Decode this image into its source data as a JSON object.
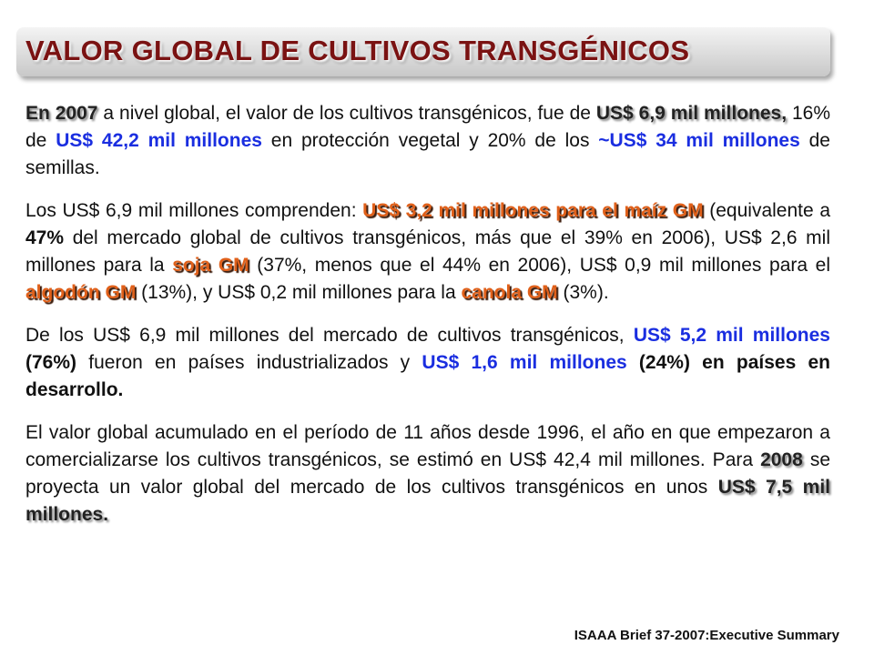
{
  "title": "VALOR GLOBAL DE CULTIVOS TRANSGÉNICOS",
  "paragraphs": [
    [
      "En 2007",
      " a nivel global, el valor de los cultivos transgénicos, fue de ",
      "US$ 6,9 mil millones,",
      " 16% de ",
      "US$ 42,2 mil millones",
      " en protección vegetal y 20% de los ",
      "~US$ 34 mil millones",
      " de semillas."
    ],
    [
      "Los US$ 6,9 mil millones comprenden: ",
      "US$ 3,2 mil millones para el maíz GM",
      " (equivalente a ",
      "47%",
      " del mercado global de cultivos transgénicos, más que el 39% en 2006), US$ 2,6 mil millones para la ",
      "soja GM",
      " (37%, menos que el 44% en 2006), US$ 0,9 mil millones para el ",
      "algodón GM",
      " (13%), y US$ 0,2 mil millones para la ",
      "canola GM",
      " (3%)."
    ],
    [
      "De los US$ 6,9 mil millones del mercado de cultivos transgénicos, ",
      "US$ 5,2 mil millones",
      " (76%)",
      " fueron en países industrializados y ",
      "US$ 1,6 mil millones",
      " (24%) en países en desarrollo."
    ],
    [
      "El valor global acumulado en el período de 11 años desde 1996, el año en que empezaron a comercializarse los cultivos transgénicos, se estimó en US$ 42,4 mil millones. Para ",
      "2008",
      " se proyecta un valor global del mercado de los cultivos transgénicos en unos ",
      "US$ 7,5 mil millones."
    ]
  ],
  "footer": "ISAAA Brief 37-2007:Executive Summary"
}
